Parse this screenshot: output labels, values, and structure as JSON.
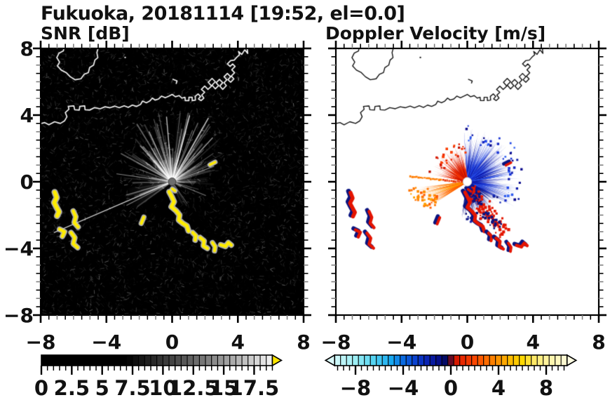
{
  "title": "Fukuoka, 20181114 [19:52, el=0.0]",
  "chart_data": {
    "type": "heatmap",
    "title": "Fukuoka, 20181114 [19:52, el=0.0]",
    "station": "Fukuoka",
    "date": "20181114",
    "time": "19:52",
    "elevation": "0.0",
    "xlim": [
      -8,
      8
    ],
    "ylim": [
      -8,
      8
    ],
    "xticks": [
      -8,
      -4,
      0,
      4,
      8
    ],
    "xtick_labels": [
      "−8",
      "−4",
      "0",
      "4",
      "8"
    ],
    "yticks": [
      8,
      4,
      0,
      -4,
      -8
    ],
    "ytick_labels": [
      "8",
      "4",
      "0",
      "−4",
      "−8"
    ],
    "minor_tick_step": 0.5,
    "radar_center": [
      0,
      0
    ],
    "panels": [
      {
        "id": "snr",
        "label": "SNR [dB]",
        "background": "#000000",
        "colorbar": {
          "min": 0,
          "max": 19,
          "cell_step": 0.5,
          "tick_values": [
            0,
            2.5,
            5,
            7.5,
            10,
            12.5,
            15,
            17.5
          ],
          "tick_labels": [
            "0",
            "2.5",
            "5",
            "7.5",
            "10",
            "12.5",
            "15",
            "17.5"
          ],
          "over_color": "#ffe600",
          "stops": [
            [
              0,
              "#000000"
            ],
            [
              7,
              "#000000"
            ],
            [
              9.5,
              "#2e2e2e"
            ],
            [
              12,
              "#5c5c5c"
            ],
            [
              15,
              "#9a9a9a"
            ],
            [
              17,
              "#c6c6c6"
            ],
            [
              19,
              "#f2f2f2"
            ]
          ]
        }
      },
      {
        "id": "velocity",
        "label": "Doppler Velocity [m/s]",
        "background": "#ffffff",
        "colorbar": {
          "min": -9.75,
          "max": 9.75,
          "cell_step": 0.5,
          "tick_values": [
            -8,
            -4,
            0,
            4,
            8
          ],
          "tick_labels": [
            "−8",
            "−4",
            "0",
            "4",
            "8"
          ],
          "under_color": "#dcfafa",
          "over_color": "#fffde2",
          "stops": [
            [
              -10,
              "#dcfafa"
            ],
            [
              -8,
              "#9ceef4"
            ],
            [
              -6.5,
              "#55d4f2"
            ],
            [
              -5,
              "#18a8f0"
            ],
            [
              -4,
              "#0a6ae0"
            ],
            [
              -3,
              "#0a42d0"
            ],
            [
              -2,
              "#0a24b4"
            ],
            [
              -1,
              "#060f88"
            ],
            [
              -0.1,
              "#03074a"
            ],
            [
              0.1,
              "#c80d00"
            ],
            [
              1,
              "#e82800"
            ],
            [
              2,
              "#fa4600"
            ],
            [
              3,
              "#ff6c00"
            ],
            [
              4,
              "#ff9400"
            ],
            [
              5,
              "#ffbc00"
            ],
            [
              6,
              "#ffd800"
            ],
            [
              7,
              "#ffe966"
            ],
            [
              8,
              "#fff29c"
            ],
            [
              10,
              "#fffde2"
            ]
          ]
        }
      }
    ],
    "coastline": {
      "island": [
        [
          -6.55,
          8.2
        ],
        [
          -6.62,
          7.85
        ],
        [
          -6.88,
          7.72
        ],
        [
          -7.02,
          7.45
        ],
        [
          -6.85,
          7.18
        ],
        [
          -6.98,
          6.95
        ],
        [
          -6.75,
          6.7
        ],
        [
          -6.45,
          6.55
        ],
        [
          -6.2,
          6.3
        ],
        [
          -5.9,
          6.12
        ],
        [
          -5.55,
          6.18
        ],
        [
          -5.35,
          6.45
        ],
        [
          -5.1,
          6.55
        ],
        [
          -5.02,
          6.85
        ],
        [
          -4.78,
          7.0
        ],
        [
          -4.7,
          7.3
        ],
        [
          -4.52,
          7.45
        ],
        [
          -4.58,
          7.75
        ],
        [
          -4.45,
          8.2
        ]
      ],
      "main": [
        [
          -8.2,
          3.45
        ],
        [
          -7.75,
          3.55
        ],
        [
          -7.5,
          3.42
        ],
        [
          -7.15,
          3.6
        ],
        [
          -6.8,
          3.5
        ],
        [
          -6.55,
          3.65
        ],
        [
          -6.4,
          3.9
        ],
        [
          -6.5,
          4.15
        ],
        [
          -6.28,
          4.35
        ],
        [
          -6.32,
          4.52
        ],
        [
          -5.98,
          4.55
        ],
        [
          -5.93,
          4.32
        ],
        [
          -5.65,
          4.3
        ],
        [
          -5.62,
          4.52
        ],
        [
          -5.32,
          4.55
        ],
        [
          -5.3,
          4.32
        ],
        [
          -5.02,
          4.3
        ],
        [
          -4.72,
          4.45
        ],
        [
          -4.38,
          4.38
        ],
        [
          -4.08,
          4.5
        ],
        [
          -3.78,
          4.44
        ],
        [
          -3.48,
          4.54
        ],
        [
          -3.22,
          4.44
        ],
        [
          -2.92,
          4.56
        ],
        [
          -2.67,
          4.46
        ],
        [
          -2.42,
          4.6
        ],
        [
          -2.17,
          4.52
        ],
        [
          -1.92,
          4.64
        ],
        [
          -1.8,
          4.84
        ],
        [
          -1.57,
          4.74
        ],
        [
          -1.37,
          4.84
        ],
        [
          -1.2,
          5.02
        ],
        [
          -1.04,
          4.9
        ],
        [
          -0.82,
          4.97
        ],
        [
          -0.64,
          5.14
        ],
        [
          -0.42,
          5.04
        ],
        [
          -0.2,
          5.14
        ],
        [
          0.0,
          5.24
        ],
        [
          0.2,
          5.1
        ],
        [
          0.42,
          5.17
        ],
        [
          0.6,
          5.02
        ],
        [
          0.78,
          5.07
        ],
        [
          0.8,
          4.87
        ],
        [
          1.02,
          4.87
        ],
        [
          1.02,
          5.07
        ],
        [
          1.22,
          5.07
        ],
        [
          1.22,
          4.87
        ],
        [
          1.42,
          4.9
        ],
        [
          1.4,
          5.12
        ],
        [
          1.58,
          5.27
        ],
        [
          1.73,
          5.12
        ],
        [
          1.6,
          4.97
        ],
        [
          1.76,
          4.87
        ],
        [
          1.93,
          5.02
        ],
        [
          1.8,
          5.2
        ],
        [
          1.98,
          5.37
        ],
        [
          1.78,
          5.54
        ],
        [
          1.98,
          5.74
        ],
        [
          2.18,
          5.54
        ],
        [
          2.4,
          5.74
        ],
        [
          2.2,
          5.97
        ],
        [
          2.43,
          6.2
        ],
        [
          2.63,
          6.0
        ],
        [
          2.43,
          5.8
        ],
        [
          2.63,
          5.57
        ],
        [
          2.83,
          5.77
        ],
        [
          2.68,
          5.94
        ],
        [
          2.88,
          6.14
        ],
        [
          3.08,
          5.94
        ],
        [
          2.9,
          5.74
        ],
        [
          3.08,
          5.54
        ],
        [
          3.3,
          5.77
        ],
        [
          3.16,
          5.94
        ],
        [
          3.33,
          6.12
        ],
        [
          3.16,
          6.3
        ],
        [
          3.36,
          6.5
        ],
        [
          3.56,
          6.3
        ],
        [
          3.4,
          6.12
        ],
        [
          3.56,
          5.97
        ],
        [
          3.76,
          6.17
        ],
        [
          3.6,
          6.34
        ],
        [
          3.8,
          6.54
        ],
        [
          3.63,
          6.72
        ],
        [
          3.83,
          6.92
        ],
        [
          3.68,
          7.07
        ],
        [
          3.53,
          6.92
        ],
        [
          3.36,
          7.07
        ],
        [
          3.56,
          7.27
        ],
        [
          3.78,
          7.3
        ],
        [
          3.93,
          7.47
        ],
        [
          4.1,
          7.62
        ],
        [
          4.04,
          7.82
        ],
        [
          4.24,
          7.64
        ],
        [
          4.42,
          7.92
        ],
        [
          4.6,
          7.7
        ],
        [
          4.55,
          8.2
        ]
      ],
      "islet": [
        [
          0.05,
          6.15
        ],
        [
          0.3,
          6.05
        ],
        [
          0.25,
          5.9
        ]
      ],
      "dots": [
        [
          -2.9,
          7.5
        ],
        [
          7.8,
          3.9
        ]
      ]
    },
    "echo_chains": [
      {
        "pts": [
          [
            -7.15,
            -0.62
          ],
          [
            -7.02,
            -0.95
          ],
          [
            -7.18,
            -1.25
          ],
          [
            -7.02,
            -1.55
          ],
          [
            -6.88,
            -1.8
          ],
          [
            -7.0,
            -2.05
          ]
        ],
        "w": 5.5
      },
      {
        "pts": [
          [
            -6.02,
            -1.75
          ],
          [
            -5.86,
            -2.1
          ],
          [
            -5.96,
            -2.45
          ],
          [
            -5.72,
            -2.72
          ]
        ],
        "w": 4.5
      },
      {
        "pts": [
          [
            -6.85,
            -2.85
          ],
          [
            -6.55,
            -3.0
          ],
          [
            -6.68,
            -3.28
          ]
        ],
        "w": 4.5
      },
      {
        "pts": [
          [
            -6.15,
            -3.05
          ],
          [
            -5.92,
            -3.35
          ],
          [
            -6.02,
            -3.72
          ],
          [
            -5.75,
            -3.95
          ]
        ],
        "w": 4.5
      },
      {
        "pts": [
          [
            -1.72,
            -2.12
          ],
          [
            -1.88,
            -2.5
          ]
        ],
        "w": 4
      },
      {
        "pts": [
          [
            -0.18,
            -0.6
          ],
          [
            -0.02,
            -0.9
          ],
          [
            0.12,
            -1.2
          ],
          [
            -0.05,
            -1.5
          ],
          [
            0.25,
            -1.75
          ],
          [
            0.45,
            -2.0
          ],
          [
            0.4,
            -2.3
          ],
          [
            0.65,
            -2.5
          ],
          [
            0.9,
            -2.65
          ],
          [
            1.0,
            -2.95
          ]
        ],
        "w": 5
      },
      {
        "pts": [
          [
            1.25,
            -3.05
          ],
          [
            1.45,
            -3.25
          ],
          [
            1.4,
            -3.5
          ]
        ],
        "w": 4.5
      },
      {
        "pts": [
          [
            1.7,
            -3.35
          ],
          [
            1.95,
            -3.55
          ],
          [
            1.9,
            -3.85
          ],
          [
            2.15,
            -4.0
          ]
        ],
        "w": 4.5
      },
      {
        "pts": [
          [
            2.45,
            -3.65
          ],
          [
            2.62,
            -3.9
          ],
          [
            2.58,
            -4.15
          ]
        ],
        "w": 4
      },
      {
        "pts": [
          [
            2.95,
            -3.78
          ],
          [
            3.25,
            -3.88
          ],
          [
            3.42,
            -3.65
          ],
          [
            3.6,
            -3.8
          ]
        ],
        "w": 4.5
      },
      {
        "pts": [
          [
            2.3,
            1.02
          ],
          [
            2.62,
            1.18
          ]
        ],
        "w": 3.5
      },
      {
        "pts": [
          [
            0.0,
            -0.42
          ],
          [
            0.18,
            -0.55
          ]
        ],
        "w": 3.5
      }
    ],
    "snr_streak_fans": [
      {
        "a0": 28,
        "a1": 152,
        "n": 130,
        "rmin": 0.8,
        "rmax": 4.3,
        "pow": 1.4,
        "aMin": 0.05,
        "aMax": 0.45
      },
      {
        "a0": -8,
        "a1": 28,
        "n": 26,
        "rmin": 0.5,
        "rmax": 2.7,
        "pow": 1.2,
        "aMin": 0.04,
        "aMax": 0.28
      },
      {
        "a0": 152,
        "a1": 216,
        "n": 32,
        "rmin": 0.5,
        "rmax": 3.0,
        "pow": 1.2,
        "aMin": 0.04,
        "aMax": 0.3
      },
      {
        "a0": 284,
        "a1": 352,
        "n": 16,
        "rmin": 0.35,
        "rmax": 1.7,
        "pow": 1.2,
        "aMin": 0.03,
        "aMax": 0.18
      }
    ],
    "snr_rays": [
      {
        "a": 203,
        "r": 7.8,
        "alpha": 0.8,
        "w": 1.2
      },
      {
        "a": 207,
        "r": 3.1,
        "alpha": 0.5,
        "w": 1.1
      },
      {
        "a": 196,
        "r": 2.9,
        "alpha": 0.45,
        "w": 1.3
      },
      {
        "a": 172,
        "r": 3.4,
        "alpha": 0.5,
        "w": 1.2
      },
      {
        "a": 60,
        "r": 4.4,
        "alpha": 0.7,
        "w": 1.6
      },
      {
        "a": 75,
        "r": 4.1,
        "alpha": 0.75,
        "w": 1.5
      },
      {
        "a": 95,
        "r": 3.9,
        "alpha": 0.7,
        "w": 1.5
      },
      {
        "a": 47,
        "r": 3.6,
        "alpha": 0.6,
        "w": 1.4
      },
      {
        "a": 115,
        "r": 3.3,
        "alpha": 0.6,
        "w": 1.4
      },
      {
        "a": 132,
        "r": 2.9,
        "alpha": 0.55,
        "w": 1.3
      },
      {
        "a": 20,
        "r": 2.7,
        "alpha": 0.5,
        "w": 1.2
      },
      {
        "a": 338,
        "r": 2.2,
        "alpha": 0.4,
        "w": 1.2
      },
      {
        "a": 305,
        "r": 1.6,
        "alpha": 0.3,
        "w": 1.1
      }
    ],
    "snr_glow_wedges": [
      {
        "a0": 188,
        "a1": 216,
        "r": 2.9,
        "alpha": 0.16
      },
      {
        "a0": 30,
        "a1": 150,
        "r": 1.7,
        "alpha": 0.22
      }
    ],
    "snr_dark_wedges": [
      {
        "a0": 242,
        "a1": 284,
        "r": 2.2
      },
      {
        "a0": 222,
        "a1": 242,
        "r": 1.5
      }
    ],
    "velocity_fans": [
      {
        "name": "approaching-blue",
        "a0": -28,
        "a1": 94,
        "n": 430,
        "rmin": 0.35,
        "rmax": 3.25,
        "pow": 1.6,
        "baseW": 2.2,
        "dots": 45,
        "colors": [
          "#0a0a8c",
          "#101caa",
          "#1426c2",
          "#1834d6",
          "#2146e6",
          "#2c58ee",
          "#3e6cf4"
        ]
      },
      {
        "name": "south-navy",
        "a0": -100,
        "a1": -26,
        "n": 180,
        "rmin": 0.3,
        "rmax": 2.25,
        "pow": 1.8,
        "baseW": 2.4,
        "dots": 18,
        "colors": [
          "#070a6e",
          "#0a1284",
          "#0e1c9e",
          "#1226b4"
        ]
      },
      {
        "name": "receding-red",
        "a0": 95,
        "a1": 169,
        "n": 170,
        "rmin": 0.3,
        "rmax": 2.3,
        "pow": 1.5,
        "baseW": 2.2,
        "dots": 30,
        "colors": [
          "#c01000",
          "#d81a00",
          "#ee2a00",
          "#fa3c00"
        ]
      }
    ],
    "orange_wedges": [
      {
        "a0": 186.5,
        "a1": 200,
        "r": 3.3
      },
      {
        "a0": 200.5,
        "a1": 213,
        "r": 2.78
      }
    ],
    "orange_colors": [
      "#ff5c00",
      "#ff7400",
      "#ff8c00",
      "#ffa200"
    ],
    "dotted_ray": {
      "a": 174,
      "r0": 0.4,
      "r1": 3.55,
      "n": 26
    },
    "speckles": {
      "red_n": 120,
      "navy_n": 45,
      "band": [
        [
          0.1,
          -0.5
        ],
        [
          2.15,
          -2.95
        ]
      ],
      "spread": 0.55,
      "red_color": "#e41600",
      "navy_color": "#0a1280"
    }
  },
  "layout_text": {
    "note": "all visible text of the figure lives in chart_data: title, panel labels, tick labels"
  }
}
